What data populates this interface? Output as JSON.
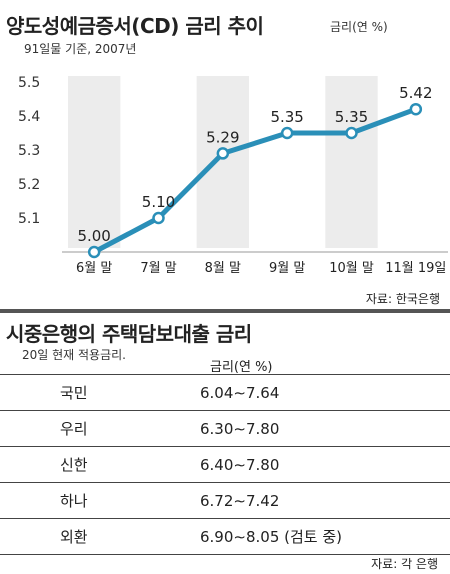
{
  "chart_title": "양도성예금증서(CD) 금리 추이",
  "chart_unit": "금리(연 %)",
  "chart_subtitle": "91일물 기준, 2007년",
  "chart_source": "자료: 한국은행",
  "chart_data": {
    "type": "line",
    "title": "양도성예금증서(CD) 금리 추이",
    "ylabel": "금리(연 %)",
    "categories": [
      "6월 말",
      "7월 말",
      "8월 말",
      "9월 말",
      "10월 말",
      "11월 19일"
    ],
    "series": [
      {
        "values": [
          5.0,
          5.1,
          5.29,
          5.35,
          5.35,
          5.42
        ]
      }
    ],
    "value_labels": [
      "5.00",
      "5.10",
      "5.29",
      "5.35",
      "5.35",
      "5.42"
    ],
    "y_ticks": [
      "5.1",
      "5.2",
      "5.3",
      "5.4",
      "5.5"
    ],
    "ylim": [
      5.0,
      5.5
    ],
    "grid": false,
    "line_color": "#2a8fb8",
    "band_color": "#ececec"
  },
  "table_title": "시중은행의 주택담보대출 금리",
  "table_subtitle": "20일 현재 적용금리.",
  "table_header": "금리(연 %)",
  "table_rows": [
    {
      "bank": "국민",
      "rate": "6.04∼7.64"
    },
    {
      "bank": "우리",
      "rate": "6.30∼7.80"
    },
    {
      "bank": "신한",
      "rate": "6.40∼7.80"
    },
    {
      "bank": "하나",
      "rate": "6.72∼7.42"
    },
    {
      "bank": "외환",
      "rate": "6.90∼8.05 (검토 중)"
    }
  ],
  "table_source": "자료: 각 은행"
}
